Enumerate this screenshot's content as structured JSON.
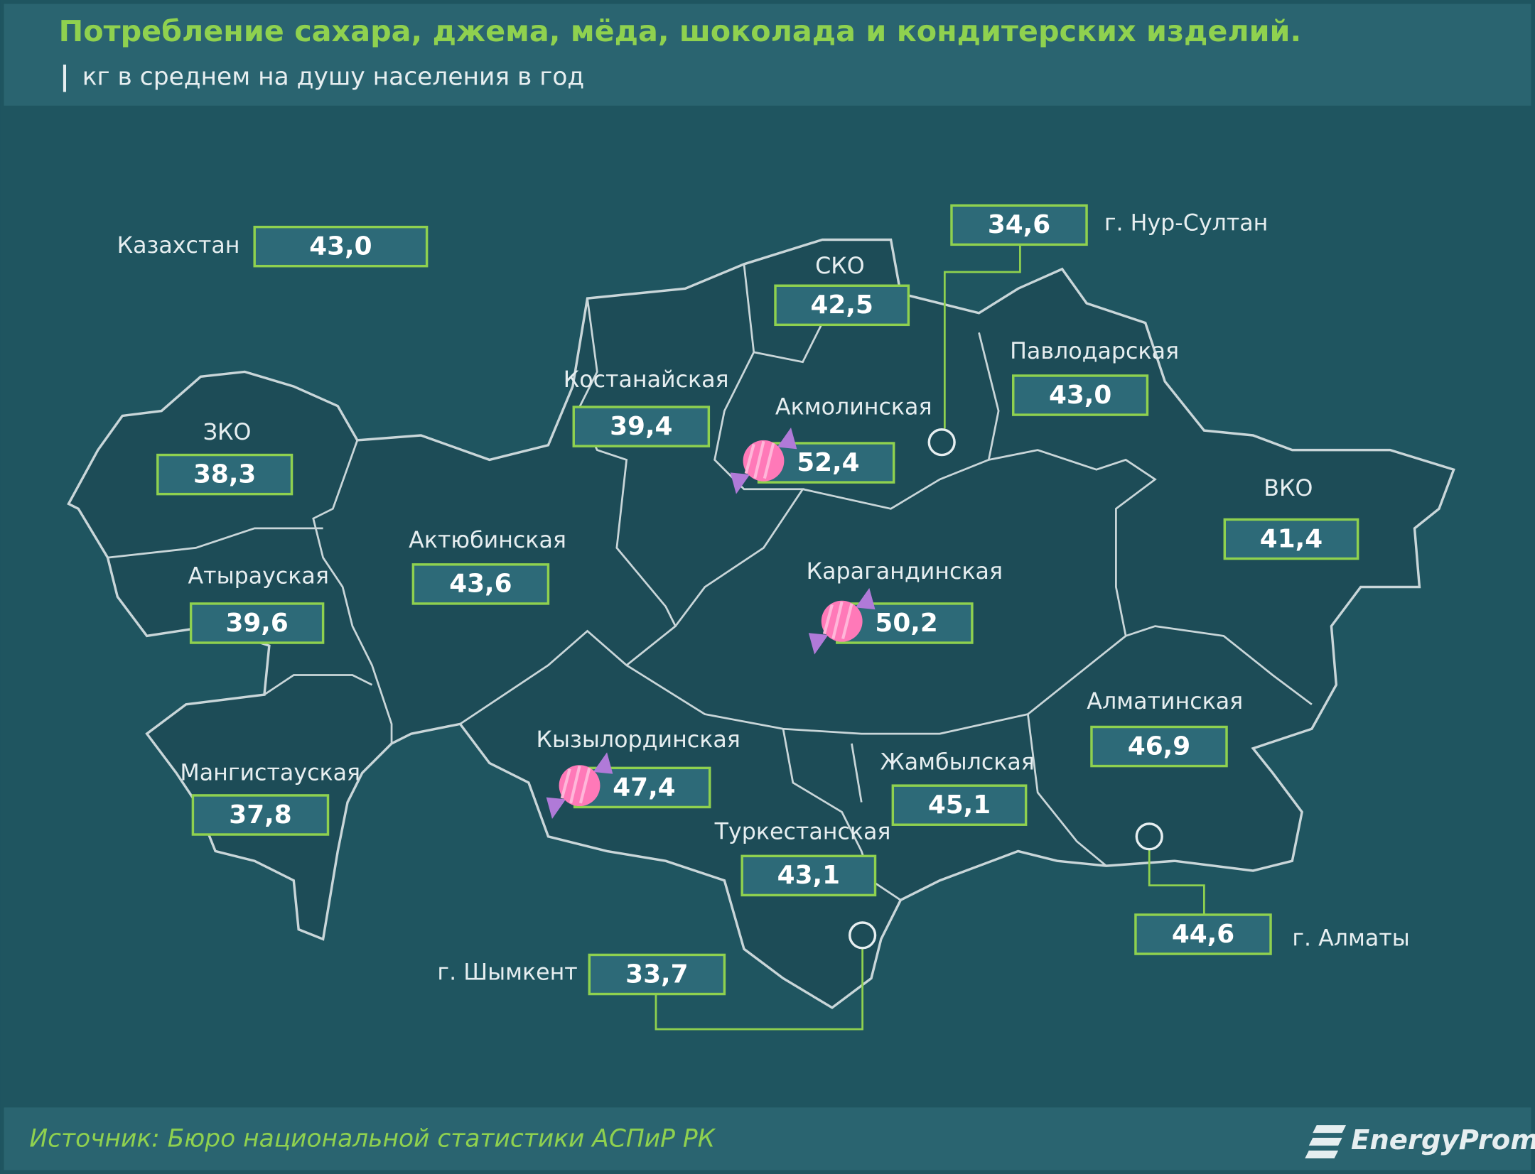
{
  "header": {
    "title": "Потребление сахара, джема, мёда, шоколада и кондитерских изделий.",
    "subtitle": "кг в среднем  на душу  населения  в год"
  },
  "regions": [
    {
      "label": "Казахстан",
      "value": "43,0"
    },
    {
      "label": "г. Нур-Султан",
      "value": "34,6"
    },
    {
      "label": "СКО",
      "value": "42,5"
    },
    {
      "label": "Павлодарская",
      "value": "43,0"
    },
    {
      "label": "Костанайская",
      "value": "39,4"
    },
    {
      "label": "Акмолинская",
      "value": "52,4"
    },
    {
      "label": "ЗКО",
      "value": "38,3"
    },
    {
      "label": "ВКО",
      "value": "41,4"
    },
    {
      "label": "Актюбинская",
      "value": "43,6"
    },
    {
      "label": "Карагандинская",
      "value": "50,2"
    },
    {
      "label": "Атырауская",
      "value": "39,6"
    },
    {
      "label": "Алматинская",
      "value": "46,9"
    },
    {
      "label": "Кызылординская",
      "value": "47,4"
    },
    {
      "label": "Жамбылская",
      "value": "45,1"
    },
    {
      "label": "Мангистауская",
      "value": "37,8"
    },
    {
      "label": "Туркестанская",
      "value": "43,1"
    },
    {
      "label": "г. Алматы",
      "value": "44,6"
    },
    {
      "label": "г. Шымкент",
      "value": "33,7"
    }
  ],
  "footer": {
    "source": "Источник: Бюро национальной  статистики АСПиР РК",
    "logo": "EnergyProm"
  }
}
